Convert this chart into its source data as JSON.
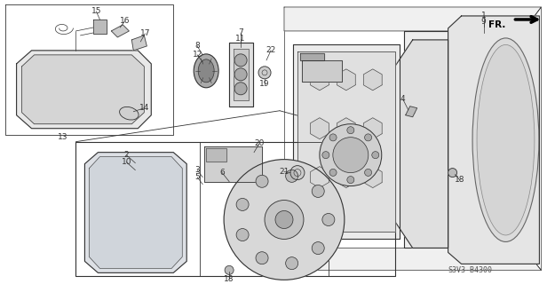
{
  "bg_color": "#ffffff",
  "line_color": "#333333",
  "diagram_code": "S3V3-B4300",
  "fr_label": "FR.",
  "fig_width": 6.25,
  "fig_height": 3.2,
  "dpi": 100
}
